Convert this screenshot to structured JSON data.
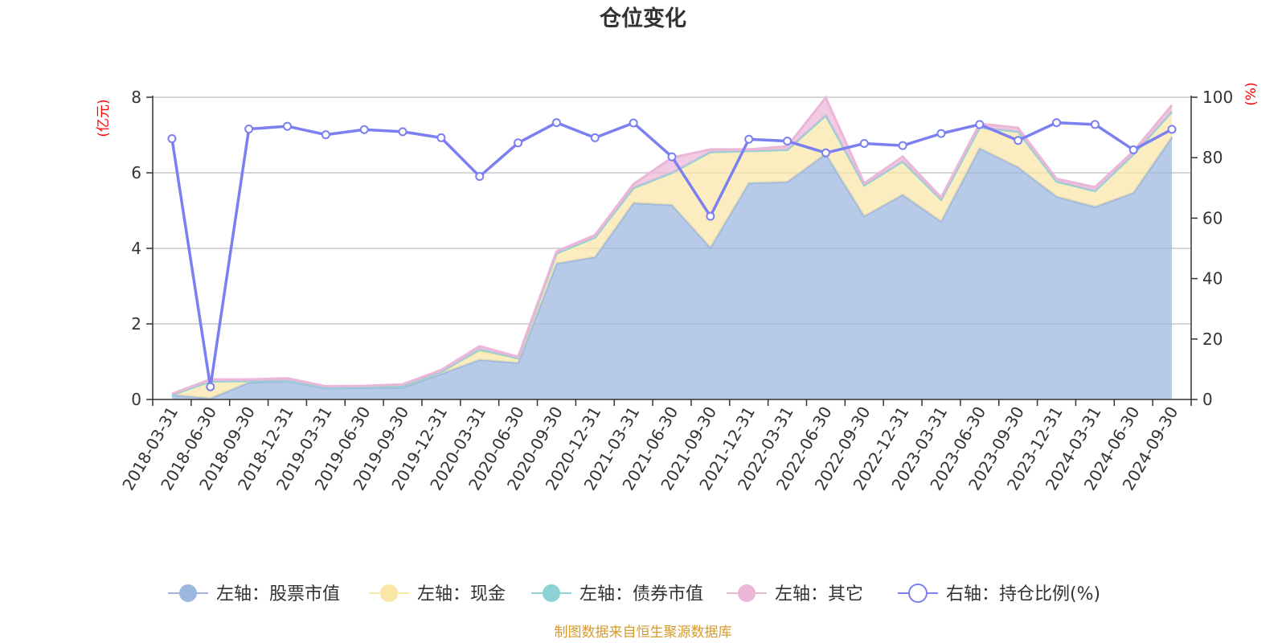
{
  "chart_data": {
    "type": "area",
    "title": "仓位变化",
    "left_axis_unit": "(亿元)",
    "right_axis_unit": "(%)",
    "left_ylim": [
      0,
      8
    ],
    "left_ticks": [
      "0",
      "2",
      "4",
      "6",
      "8"
    ],
    "right_ylim": [
      0,
      100
    ],
    "right_ticks": [
      "0",
      "20",
      "40",
      "60",
      "80",
      "100"
    ],
    "grid": true,
    "legend_position": "bottom",
    "categories": [
      "2018-03-31",
      "2018-06-30",
      "2018-09-30",
      "2018-12-31",
      "2019-03-31",
      "2019-06-30",
      "2019-09-30",
      "2019-12-31",
      "2020-03-31",
      "2020-06-30",
      "2020-09-30",
      "2020-12-31",
      "2021-03-31",
      "2021-06-30",
      "2021-09-30",
      "2021-12-31",
      "2022-03-31",
      "2022-06-30",
      "2022-09-30",
      "2022-12-31",
      "2023-03-31",
      "2023-06-30",
      "2023-09-30",
      "2023-12-31",
      "2024-03-31",
      "2024-06-30",
      "2024-09-30"
    ],
    "series": [
      {
        "name": "左轴：股票市值",
        "axis": "left",
        "type": "stacked-area",
        "color": "#9bb7e0",
        "values": [
          0.12,
          0.03,
          0.45,
          0.48,
          0.3,
          0.31,
          0.32,
          0.68,
          1.05,
          0.97,
          3.6,
          3.77,
          5.2,
          5.15,
          4.02,
          5.73,
          5.76,
          6.5,
          4.85,
          5.42,
          4.71,
          6.65,
          6.15,
          5.37,
          5.1,
          5.47,
          6.95
        ]
      },
      {
        "name": "左轴：现金",
        "axis": "left",
        "type": "stacked-area",
        "color": "#fae6a6",
        "values": [
          0.0,
          0.45,
          0.04,
          0.02,
          0.02,
          0.02,
          0.04,
          0.05,
          0.23,
          0.12,
          0.27,
          0.52,
          0.4,
          0.85,
          2.53,
          0.85,
          0.85,
          1.02,
          0.82,
          0.88,
          0.58,
          0.55,
          0.94,
          0.4,
          0.42,
          1.02,
          0.67
        ]
      },
      {
        "name": "左轴：债券市值",
        "axis": "left",
        "type": "stacked-area",
        "color": "#8dd3d5",
        "values": [
          0.0,
          0.0,
          0.0,
          0.0,
          0.0,
          0.0,
          0.0,
          0.0,
          0.05,
          0.0,
          0.0,
          0.0,
          0.0,
          0.0,
          0.0,
          0.0,
          0.0,
          0.0,
          0.0,
          0.0,
          0.0,
          0.0,
          0.0,
          0.0,
          0.0,
          0.0,
          0.0
        ]
      },
      {
        "name": "左轴：其它",
        "axis": "left",
        "type": "stacked-area",
        "color": "#ebb6d8",
        "values": [
          0.03,
          0.05,
          0.04,
          0.06,
          0.03,
          0.03,
          0.04,
          0.05,
          0.08,
          0.04,
          0.05,
          0.06,
          0.1,
          0.4,
          0.07,
          0.04,
          0.09,
          0.47,
          0.05,
          0.13,
          0.06,
          0.1,
          0.1,
          0.07,
          0.1,
          0.08,
          0.17
        ]
      },
      {
        "name": "右轴：持仓比例(%)",
        "axis": "right",
        "type": "line",
        "color": "#7b7ff0",
        "values": [
          86.3,
          4.2,
          89.5,
          90.4,
          87.6,
          89.3,
          88.6,
          86.6,
          73.8,
          84.9,
          91.6,
          86.6,
          91.5,
          80.3,
          60.6,
          86.1,
          85.5,
          81.6,
          84.7,
          84.0,
          88.0,
          91.0,
          85.7,
          91.6,
          91.0,
          82.6,
          89.4
        ]
      }
    ],
    "source_note": "制图数据来自恒生聚源数据库"
  }
}
